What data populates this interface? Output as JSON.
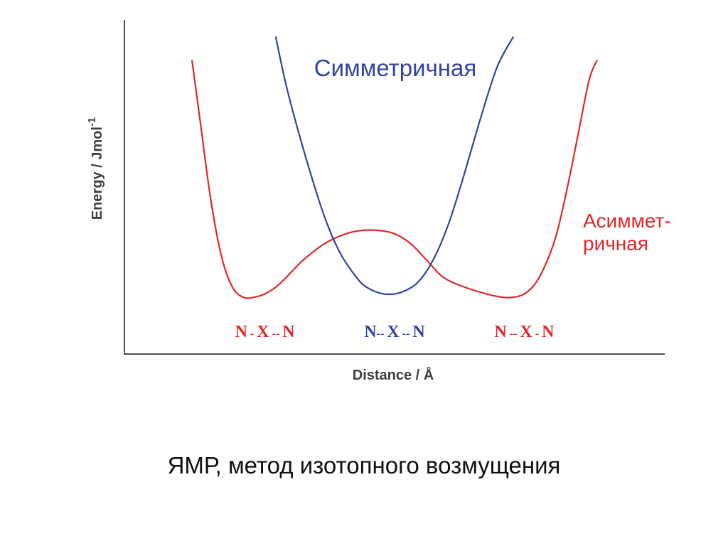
{
  "chart_data": {
    "type": "line",
    "title": "",
    "xlabel": "Distance / Å",
    "ylabel_main": "Energy / Jmol",
    "ylabel_sup": "-1",
    "ticks": "none",
    "grid": false,
    "xlim": [
      0,
      100
    ],
    "ylim": [
      0,
      100
    ],
    "series": [
      {
        "name_lines": [
          "Асиммет-",
          "ричная"
        ],
        "color": "#e02828",
        "x": [
          12.5,
          14,
          16,
          18,
          20,
          22,
          24,
          26,
          28,
          30,
          33,
          37,
          41,
          44,
          47,
          50,
          53,
          56,
          59,
          63,
          67,
          70,
          72,
          74,
          76,
          78,
          80,
          82,
          84,
          86,
          87.5
        ],
        "y": [
          88,
          70,
          46,
          29,
          20,
          17,
          17,
          18,
          20,
          23,
          28,
          33,
          36,
          37,
          37,
          36,
          33,
          28,
          23,
          20,
          18,
          17,
          17,
          18,
          21,
          27,
          36,
          50,
          66,
          82,
          88
        ]
      },
      {
        "name": "Симметричная",
        "color": "#3344a0",
        "x": [
          28,
          30,
          33,
          36,
          38,
          40,
          42,
          44,
          46,
          48,
          50,
          52,
          54,
          56,
          58,
          60,
          62,
          64,
          66,
          69,
          72
        ],
        "y": [
          95,
          80,
          62,
          46,
          37,
          30,
          25,
          21,
          19,
          18,
          18,
          19,
          21,
          25,
          31,
          39,
          49,
          60,
          71,
          86,
          95
        ]
      }
    ],
    "annotations": [
      {
        "color": "#e02828",
        "x": 26,
        "parts": [
          {
            "text": "N",
            "size": 24
          },
          {
            "text": " - ",
            "size": 16
          },
          {
            "text": "X",
            "size": 24
          },
          {
            "text": " -- ",
            "size": 16
          },
          {
            "text": "N",
            "size": 24
          }
        ]
      },
      {
        "color": "#3344a0",
        "x": 50,
        "parts": [
          {
            "text": "N",
            "size": 24
          },
          {
            "text": "-- ",
            "size": 16
          },
          {
            "text": "X",
            "size": 24
          },
          {
            "text": " -- ",
            "size": 16
          },
          {
            "text": "N",
            "size": 24
          }
        ]
      },
      {
        "color": "#e02828",
        "x": 74,
        "parts": [
          {
            "text": "N",
            "size": 24
          },
          {
            "text": " -- ",
            "size": 16
          },
          {
            "text": "X",
            "size": 24
          },
          {
            "text": " - ",
            "size": 16
          },
          {
            "text": "N",
            "size": 24
          }
        ]
      }
    ]
  },
  "caption": "ЯМР, метод изотопного возмущения"
}
